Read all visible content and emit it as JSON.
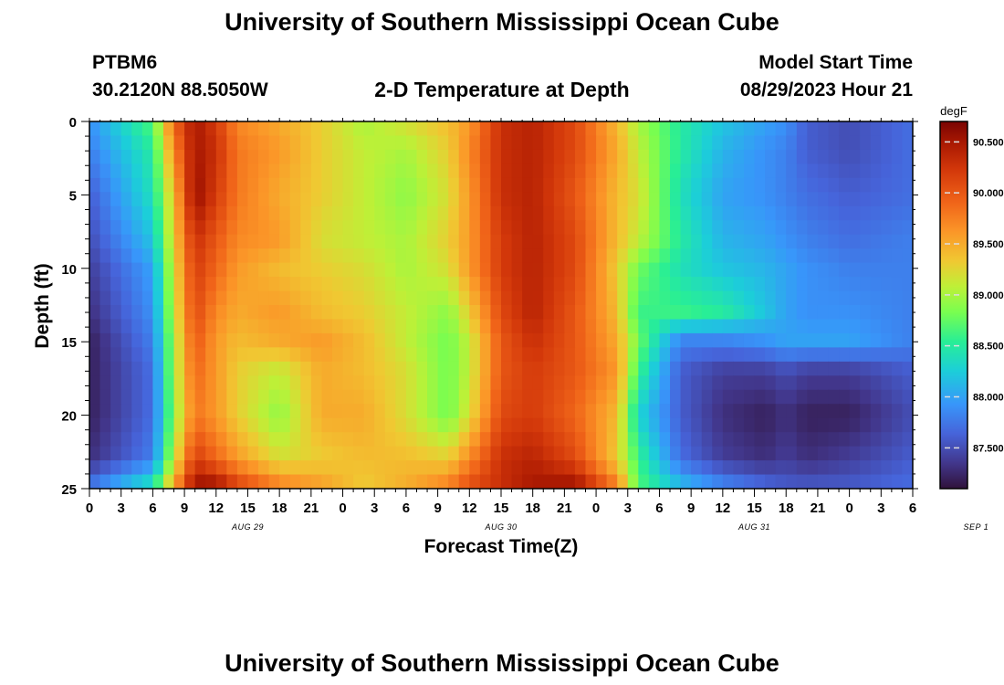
{
  "header": {
    "title": "University of Southern Mississippi Ocean Cube",
    "station": "PTBM6",
    "coords": "30.2120N  88.5050W",
    "subtitle": "2-D Temperature at Depth",
    "model_start_label": "Model Start Time",
    "model_start_value": "08/29/2023 Hour 21"
  },
  "footer": {
    "title": "University of Southern Mississippi Ocean Cube"
  },
  "chart_data": {
    "type": "heatmap",
    "xlabel": "Forecast Time(Z)",
    "ylabel": "Depth (ft)",
    "x_tick_labels": [
      "0",
      "3",
      "6",
      "9",
      "12",
      "15",
      "18",
      "21",
      "0",
      "3",
      "6",
      "9",
      "12",
      "15",
      "18",
      "21",
      "0",
      "3",
      "6",
      "9",
      "12",
      "15",
      "18",
      "21",
      "0",
      "3",
      "6"
    ],
    "day_labels": [
      {
        "label": "AUG 29",
        "hours_from_start": 15
      },
      {
        "label": "AUG 30",
        "hours_from_start": 39
      },
      {
        "label": "AUG 31",
        "hours_from_start": 63
      },
      {
        "label": "SEP 1",
        "hours_from_start": 84
      }
    ],
    "x_range_hours": [
      0,
      78
    ],
    "y_ticks": [
      0,
      5,
      10,
      15,
      20,
      25
    ],
    "ylim": [
      0,
      25
    ],
    "y_inverted": true,
    "colorbar": {
      "unit": "degF",
      "min": 87.1,
      "max": 90.7,
      "ticks": [
        "90.500",
        "90.000",
        "89.500",
        "89.000",
        "88.500",
        "88.000",
        "87.500"
      ],
      "tick_values": [
        90.5,
        90.0,
        89.5,
        89.0,
        88.5,
        88.0,
        87.5
      ]
    },
    "grid_hours": [
      0,
      6,
      8,
      10,
      12,
      14,
      18,
      22,
      26,
      30,
      34,
      36,
      39,
      42,
      46,
      50,
      52,
      56,
      60,
      64,
      66,
      68,
      72,
      78
    ],
    "grid_depths": [
      0,
      2,
      5,
      8,
      10,
      13,
      15,
      17,
      20,
      23,
      25
    ],
    "values_degF": [
      [
        87.9,
        88.7,
        89.9,
        90.5,
        90.2,
        89.7,
        89.5,
        89.3,
        89.0,
        89.2,
        89.4,
        89.6,
        90.3,
        90.4,
        90.1,
        89.4,
        89.0,
        88.5,
        88.2,
        88.0,
        87.9,
        87.6,
        87.5,
        87.7
      ],
      [
        87.8,
        88.5,
        89.7,
        90.5,
        90.3,
        89.8,
        89.6,
        89.3,
        89.1,
        89.0,
        89.3,
        89.7,
        90.3,
        90.4,
        90.1,
        89.5,
        89.1,
        88.5,
        88.1,
        87.9,
        87.8,
        87.6,
        87.5,
        87.7
      ],
      [
        87.6,
        88.4,
        89.4,
        90.6,
        90.2,
        89.8,
        89.5,
        89.3,
        89.1,
        88.9,
        89.2,
        89.6,
        90.3,
        90.4,
        90.0,
        89.4,
        89.2,
        88.4,
        88.0,
        87.9,
        87.8,
        87.7,
        87.6,
        87.7
      ],
      [
        87.5,
        88.2,
        89.3,
        90.3,
        90.0,
        89.7,
        89.6,
        89.2,
        89.1,
        89.0,
        89.3,
        89.6,
        90.2,
        90.4,
        90.1,
        89.4,
        89.1,
        88.5,
        88.1,
        88.0,
        87.9,
        87.8,
        87.7,
        87.8
      ],
      [
        87.4,
        88.0,
        89.2,
        90.2,
        89.9,
        89.6,
        89.4,
        89.3,
        89.2,
        89.0,
        89.2,
        89.6,
        90.2,
        90.4,
        90.1,
        89.3,
        88.8,
        88.4,
        88.2,
        88.1,
        88.0,
        87.9,
        87.8,
        87.8
      ],
      [
        87.3,
        87.9,
        89.1,
        90.1,
        89.7,
        89.5,
        89.6,
        89.4,
        89.3,
        89.1,
        88.9,
        89.3,
        90.1,
        90.4,
        90.0,
        89.4,
        88.6,
        88.6,
        88.5,
        88.2,
        88.0,
        87.9,
        87.9,
        87.8
      ],
      [
        87.2,
        87.8,
        89.0,
        90.0,
        89.6,
        89.4,
        89.5,
        89.6,
        89.4,
        89.1,
        88.8,
        89.1,
        90.0,
        90.3,
        90.0,
        89.5,
        88.8,
        87.8,
        87.8,
        87.9,
        88.0,
        88.0,
        88.0,
        87.8
      ],
      [
        87.2,
        87.7,
        89.0,
        89.9,
        89.6,
        89.3,
        89.1,
        89.5,
        89.4,
        89.2,
        88.8,
        89.1,
        90.0,
        90.2,
        90.0,
        89.6,
        88.6,
        87.6,
        87.4,
        87.4,
        87.5,
        87.4,
        87.4,
        87.6
      ],
      [
        87.2,
        87.7,
        88.9,
        89.8,
        89.6,
        89.3,
        88.9,
        89.5,
        89.5,
        89.2,
        88.8,
        89.2,
        90.1,
        90.2,
        89.9,
        89.4,
        88.3,
        87.6,
        87.3,
        87.2,
        87.3,
        87.2,
        87.2,
        87.5
      ],
      [
        87.3,
        87.8,
        89.1,
        90.2,
        89.9,
        89.6,
        89.2,
        89.3,
        89.4,
        89.4,
        89.3,
        89.7,
        90.3,
        90.4,
        90.1,
        89.3,
        88.6,
        87.7,
        87.4,
        87.3,
        87.4,
        87.3,
        87.4,
        87.6
      ],
      [
        87.8,
        88.5,
        89.6,
        90.6,
        90.6,
        90.2,
        89.8,
        89.6,
        89.3,
        89.5,
        89.8,
        90.1,
        90.3,
        90.5,
        90.6,
        89.8,
        88.7,
        88.2,
        87.9,
        87.7,
        87.6,
        87.6,
        87.6,
        87.7
      ]
    ]
  }
}
